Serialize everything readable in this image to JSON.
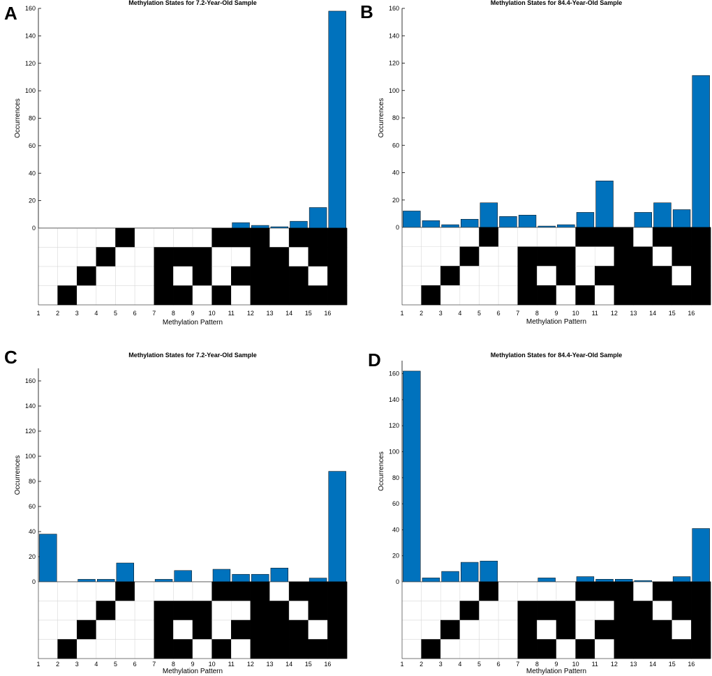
{
  "chart_data": [
    {
      "type": "bar",
      "panel_label": "A",
      "title": "Methylation States for 7.2-Year-Old Sample",
      "xlabel": "Methylation Pattern",
      "ylabel": "Occurrences",
      "categories": [
        "1",
        "2",
        "3",
        "4",
        "5",
        "6",
        "7",
        "8",
        "9",
        "10",
        "11",
        "12",
        "13",
        "14",
        "15",
        "16"
      ],
      "values": [
        0,
        0,
        0,
        0,
        0,
        0,
        0,
        0,
        0,
        0,
        4,
        2,
        1,
        5,
        15,
        158
      ],
      "y_ticks": [
        0,
        20,
        40,
        60,
        80,
        100,
        120,
        140,
        160
      ],
      "ylim": [
        0,
        160
      ],
      "bar_color": "#0072BD",
      "pattern_matrix": [
        [
          0,
          0,
          0,
          0
        ],
        [
          0,
          0,
          0,
          1
        ],
        [
          0,
          0,
          1,
          0
        ],
        [
          0,
          1,
          0,
          0
        ],
        [
          1,
          0,
          0,
          0
        ],
        [
          0,
          0,
          0,
          0
        ],
        [
          0,
          1,
          1,
          1
        ],
        [
          0,
          1,
          0,
          1
        ],
        [
          0,
          1,
          1,
          0
        ],
        [
          1,
          0,
          0,
          1
        ],
        [
          1,
          0,
          1,
          0
        ],
        [
          1,
          1,
          1,
          1
        ],
        [
          0,
          1,
          1,
          1
        ],
        [
          1,
          0,
          1,
          1
        ],
        [
          1,
          1,
          0,
          1
        ],
        [
          1,
          1,
          1,
          1
        ]
      ]
    },
    {
      "type": "bar",
      "panel_label": "B",
      "title": "Methylation States for 84.4-Year-Old Sample",
      "xlabel": "Methylation Pattern",
      "ylabel": "Occurrences",
      "categories": [
        "1",
        "2",
        "3",
        "4",
        "5",
        "6",
        "7",
        "8",
        "9",
        "10",
        "11",
        "12",
        "13",
        "14",
        "15",
        "16"
      ],
      "values": [
        12,
        5,
        2,
        6,
        18,
        8,
        9,
        1,
        2,
        11,
        34,
        0,
        11,
        18,
        13,
        111
      ],
      "y_ticks": [
        0,
        20,
        40,
        60,
        80,
        100,
        120,
        140,
        160
      ],
      "ylim": [
        0,
        160
      ],
      "bar_color": "#0072BD",
      "pattern_matrix": [
        [
          0,
          0,
          0,
          0
        ],
        [
          0,
          0,
          0,
          1
        ],
        [
          0,
          0,
          1,
          0
        ],
        [
          0,
          1,
          0,
          0
        ],
        [
          1,
          0,
          0,
          0
        ],
        [
          0,
          0,
          0,
          0
        ],
        [
          0,
          1,
          1,
          1
        ],
        [
          0,
          1,
          0,
          1
        ],
        [
          0,
          1,
          1,
          0
        ],
        [
          1,
          0,
          0,
          1
        ],
        [
          1,
          0,
          1,
          0
        ],
        [
          1,
          1,
          1,
          1
        ],
        [
          0,
          1,
          1,
          1
        ],
        [
          1,
          0,
          1,
          1
        ],
        [
          1,
          1,
          0,
          1
        ],
        [
          1,
          1,
          1,
          1
        ]
      ]
    },
    {
      "type": "bar",
      "panel_label": "C",
      "title": "Methylation States for 7.2-Year-Old Sample",
      "xlabel": "Methylation Pattern",
      "ylabel": "Occurrences",
      "categories": [
        "1",
        "2",
        "3",
        "4",
        "5",
        "6",
        "7",
        "8",
        "9",
        "10",
        "11",
        "12",
        "13",
        "14",
        "15",
        "16"
      ],
      "values": [
        38,
        0,
        2,
        2,
        15,
        0,
        2,
        9,
        0,
        10,
        6,
        6,
        11,
        0,
        3,
        88
      ],
      "y_ticks": [
        0,
        20,
        40,
        60,
        80,
        100,
        120,
        140,
        160
      ],
      "ylim": [
        0,
        170
      ],
      "bar_color": "#0072BD",
      "pattern_matrix": [
        [
          0,
          0,
          0,
          0
        ],
        [
          0,
          0,
          0,
          1
        ],
        [
          0,
          0,
          1,
          0
        ],
        [
          0,
          1,
          0,
          0
        ],
        [
          1,
          0,
          0,
          0
        ],
        [
          0,
          0,
          0,
          0
        ],
        [
          0,
          1,
          1,
          1
        ],
        [
          0,
          1,
          0,
          1
        ],
        [
          0,
          1,
          1,
          0
        ],
        [
          1,
          0,
          0,
          1
        ],
        [
          1,
          0,
          1,
          0
        ],
        [
          1,
          1,
          1,
          1
        ],
        [
          0,
          1,
          1,
          1
        ],
        [
          1,
          0,
          1,
          1
        ],
        [
          1,
          1,
          0,
          1
        ],
        [
          1,
          1,
          1,
          1
        ]
      ]
    },
    {
      "type": "bar",
      "panel_label": "D",
      "title": "Methylation States for 84.4-Year-Old Sample",
      "xlabel": "Methylation Pattern",
      "ylabel": "Occurrences",
      "categories": [
        "1",
        "2",
        "3",
        "4",
        "5",
        "6",
        "7",
        "8",
        "9",
        "10",
        "11",
        "12",
        "13",
        "14",
        "15",
        "16"
      ],
      "values": [
        162,
        3,
        8,
        15,
        16,
        0,
        0,
        3,
        0,
        4,
        2,
        2,
        1,
        0,
        4,
        41
      ],
      "y_ticks": [
        0,
        20,
        40,
        60,
        80,
        100,
        120,
        140,
        160
      ],
      "ylim": [
        0,
        170
      ],
      "bar_color": "#0072BD",
      "pattern_matrix": [
        [
          0,
          0,
          0,
          0
        ],
        [
          0,
          0,
          0,
          1
        ],
        [
          0,
          0,
          1,
          0
        ],
        [
          0,
          1,
          0,
          0
        ],
        [
          1,
          0,
          0,
          0
        ],
        [
          0,
          0,
          0,
          0
        ],
        [
          0,
          1,
          1,
          1
        ],
        [
          0,
          1,
          0,
          1
        ],
        [
          0,
          1,
          1,
          0
        ],
        [
          1,
          0,
          0,
          1
        ],
        [
          1,
          0,
          1,
          0
        ],
        [
          1,
          1,
          1,
          1
        ],
        [
          0,
          1,
          1,
          1
        ],
        [
          1,
          0,
          1,
          1
        ],
        [
          1,
          1,
          0,
          1
        ],
        [
          1,
          1,
          1,
          1
        ]
      ]
    }
  ]
}
